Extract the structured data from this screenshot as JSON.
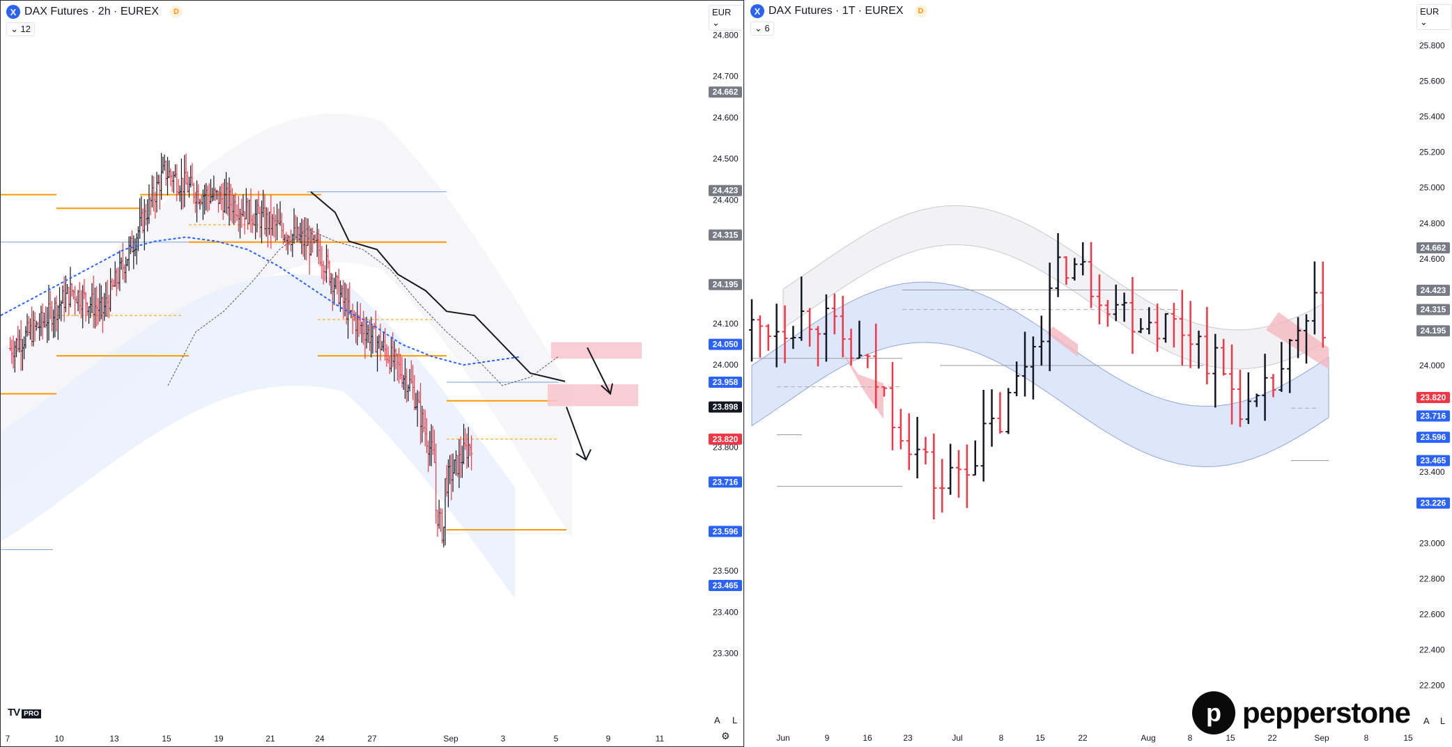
{
  "left_chart": {
    "symbol": "DAX Futures · 2h · EUREX",
    "symbol_icon": "X",
    "delay_badge": "D",
    "indicator_count": "12",
    "currency": "EUR",
    "platform_badge": "PRO",
    "axis_letters": [
      "A",
      "L"
    ],
    "x_ticks": [
      "7",
      "10",
      "13",
      "15",
      "19",
      "21",
      "24",
      "27",
      "Sep",
      "3",
      "5",
      "9",
      "11"
    ]
  },
  "right_chart": {
    "symbol": "DAX Futures · 1T · EUREX",
    "symbol_icon": "X",
    "delay_badge": "D",
    "indicator_count": "6",
    "currency": "EUR",
    "axis_letters": [
      "A",
      "L"
    ],
    "x_ticks": [
      "Jun",
      "9",
      "16",
      "23",
      "Jul",
      "8",
      "15",
      "22",
      "Aug",
      "8",
      "15",
      "22",
      "Sep",
      "8",
      "15"
    ]
  },
  "brand": {
    "name": "pepperstone"
  },
  "colors": {
    "up": "#131722",
    "down": "#f23645",
    "orange": "#ff9800",
    "blue_dotted": "#2962ff",
    "zone": "#f7c6cc"
  },
  "chart_data": [
    {
      "type": "line",
      "title": "DAX Futures · 2h · EUREX",
      "y_ticks": [
        23.3,
        23.4,
        23.5,
        23.6,
        23.7,
        23.8,
        23.9,
        24.0,
        24.1,
        24.2,
        24.3,
        24.4,
        24.5,
        24.6,
        24.7,
        24.8
      ],
      "y_tick_labels": [
        "23.300",
        "23.400",
        "23.500",
        "",
        "",
        "23.800",
        "",
        "24.000",
        "24.100",
        "",
        "",
        "24.400",
        "24.500",
        "24.600",
        "24.700",
        "24.800"
      ],
      "ylim": [
        23.22,
        24.86
      ],
      "price_labels": [
        {
          "text": "24.662",
          "value": 24.662,
          "color": "#787b86"
        },
        {
          "text": "24.423",
          "value": 24.423,
          "color": "#787b86"
        },
        {
          "text": "24.315",
          "value": 24.315,
          "color": "#787b86"
        },
        {
          "text": "24.195",
          "value": 24.195,
          "color": "#787b86"
        },
        {
          "text": "24.050",
          "value": 24.05,
          "color": "#2962ff"
        },
        {
          "text": "23.958",
          "value": 23.958,
          "color": "#2962ff"
        },
        {
          "text": "23.898",
          "value": 23.898,
          "color": "#131722"
        },
        {
          "text": "23.820",
          "value": 23.82,
          "color": "#f23645"
        },
        {
          "text": "23.716",
          "value": 23.716,
          "color": "#2962ff"
        },
        {
          "text": "23.596",
          "value": 23.596,
          "color": "#2962ff"
        },
        {
          "text": "23.465",
          "value": 23.465,
          "color": "#2962ff"
        }
      ],
      "x": [
        0,
        20,
        40,
        60,
        80,
        100,
        120,
        140,
        160,
        180,
        200,
        220,
        240,
        260,
        280,
        300
      ],
      "series": [
        {
          "values": [
            24.04,
            24.1,
            24.18,
            24.13,
            24.3,
            24.47,
            24.42,
            24.4,
            24.36,
            24.32,
            24.28,
            24.12,
            24.05,
            23.95,
            23.7,
            23.82
          ]
        },
        {
          "values": [
            24.12,
            24.16,
            24.2,
            24.24,
            24.28,
            24.3,
            24.31,
            24.3,
            24.28,
            24.24,
            24.19,
            24.14,
            24.1,
            24.05,
            24.02,
            24.0
          ]
        },
        {
          "values": [
            null,
            null,
            null,
            null,
            null,
            null,
            null,
            null,
            null,
            null,
            24.38,
            24.25,
            24.12,
            24.0,
            23.96,
            23.96
          ]
        }
      ],
      "levels": [
        24.413,
        24.395,
        24.298,
        24.28,
        24.022,
        23.913,
        23.6,
        23.9
      ],
      "zones": [
        {
          "from": 24.015,
          "to": 24.055
        },
        {
          "from": 23.9,
          "to": 23.953
        }
      ]
    },
    {
      "type": "line",
      "title": "DAX Futures · 1T · EUREX",
      "y_tick_labels": [
        "25.800",
        "25.600",
        "25.400",
        "25.200",
        "25.000",
        "24.800",
        "24.600",
        "",
        "",
        "",
        "24.000",
        "",
        "23.400",
        "",
        "23.000",
        "22.800",
        "22.600",
        "22.400",
        "22.200"
      ],
      "ylim": [
        22.1,
        25.9
      ],
      "price_labels": [
        {
          "text": "24.662",
          "value": 24.662,
          "color": "#787b86"
        },
        {
          "text": "24.423",
          "value": 24.423,
          "color": "#787b86"
        },
        {
          "text": "24.315",
          "value": 24.315,
          "color": "#787b86"
        },
        {
          "text": "24.195",
          "value": 24.195,
          "color": "#787b86"
        },
        {
          "text": "23.820",
          "value": 23.82,
          "color": "#f23645"
        },
        {
          "text": "23.716",
          "value": 23.716,
          "color": "#2962ff"
        },
        {
          "text": "23.596",
          "value": 23.596,
          "color": "#2962ff"
        },
        {
          "text": "23.465",
          "value": 23.465,
          "color": "#2962ff"
        },
        {
          "text": "23.226",
          "value": 23.226,
          "color": "#2962ff"
        }
      ],
      "x": [
        0,
        10,
        20,
        30,
        40,
        50,
        60,
        70,
        80,
        90,
        100
      ],
      "series": [
        {
          "values": [
            24.2,
            24.3,
            23.9,
            23.3,
            23.7,
            24.6,
            24.3,
            24.2,
            23.7,
            24.3,
            23.8
          ]
        }
      ]
    }
  ]
}
